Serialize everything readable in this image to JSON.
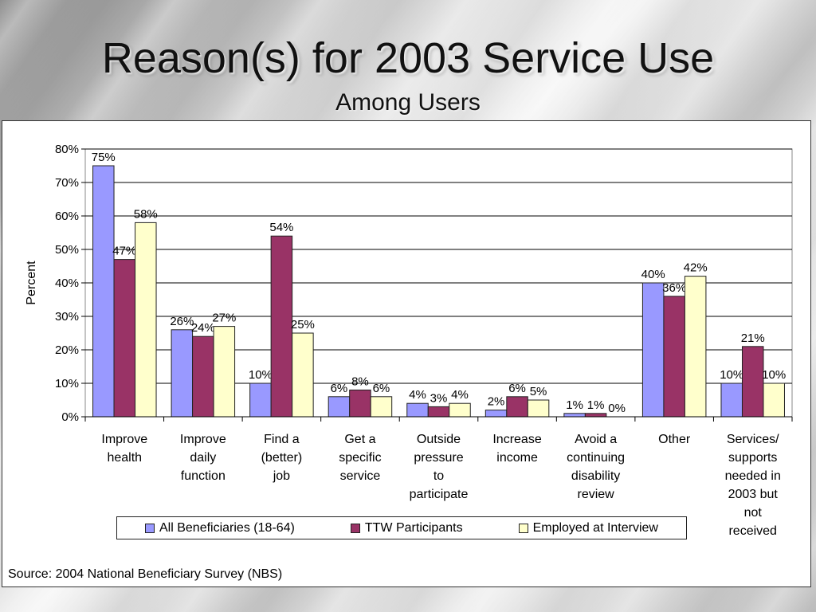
{
  "title": "Reason(s) for 2003 Service Use",
  "subtitle": "Among Users",
  "source": "Source: 2004 National Beneficiary Survey (NBS)",
  "chart_data": {
    "type": "bar",
    "title": "Reason(s) for 2003 Service Use",
    "subtitle": "Among Users",
    "xlabel": "",
    "ylabel": "Percent",
    "ylim": [
      0,
      80
    ],
    "yticks": [
      "0%",
      "10%",
      "20%",
      "30%",
      "40%",
      "50%",
      "60%",
      "70%",
      "80%"
    ],
    "grid": true,
    "legend_position": "bottom",
    "categories": [
      [
        "Improve",
        "health"
      ],
      [
        "Improve",
        "daily",
        "function"
      ],
      [
        "Find a",
        "(better)",
        "job"
      ],
      [
        "Get a",
        "specific",
        "service"
      ],
      [
        "Outside",
        "pressure",
        "to",
        "participate"
      ],
      [
        "Increase",
        "income"
      ],
      [
        "Avoid a",
        "continuing",
        "disability",
        "review"
      ],
      [
        "Other"
      ],
      [
        "Services/",
        "supports",
        "needed in",
        "2003 but",
        "not",
        "received"
      ]
    ],
    "series": [
      {
        "name": "All Beneficiaries (18-64)",
        "color": "#9999ff",
        "values": [
          75,
          26,
          10,
          6,
          4,
          2,
          1,
          40,
          10
        ]
      },
      {
        "name": "TTW Participants",
        "color": "#993366",
        "values": [
          47,
          24,
          54,
          8,
          3,
          6,
          1,
          36,
          21
        ]
      },
      {
        "name": "Employed  at Interview",
        "color": "#ffffcc",
        "values": [
          58,
          27,
          25,
          6,
          4,
          5,
          0,
          42,
          10
        ]
      }
    ]
  }
}
